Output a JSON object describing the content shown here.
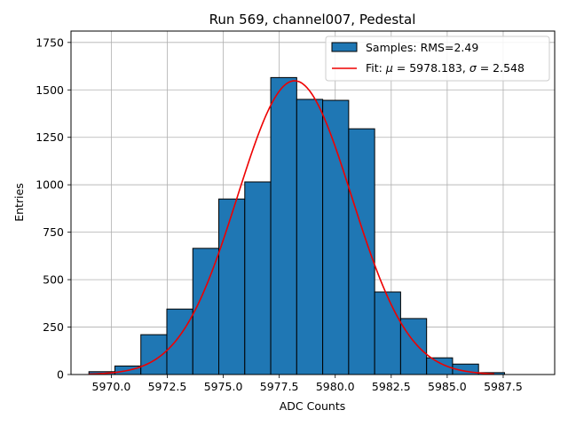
{
  "chart_data": {
    "type": "bar",
    "title": "Run 569, channel007, Pedestal",
    "xlabel": "ADC Counts",
    "ylabel": "Entries",
    "xlim": [
      5968.2,
      5989.8
    ],
    "ylim": [
      0,
      1810
    ],
    "xticks": [
      5970.0,
      5972.5,
      5975.0,
      5977.5,
      5980.0,
      5982.5,
      5985.0,
      5987.5
    ],
    "xtick_labels": [
      "5970.0",
      "5972.5",
      "5975.0",
      "5977.5",
      "5980.0",
      "5982.5",
      "5985.0",
      "5987.5"
    ],
    "yticks": [
      0,
      250,
      500,
      750,
      1000,
      1250,
      1500,
      1750
    ],
    "ytick_labels": [
      "0",
      "250",
      "500",
      "750",
      "1000",
      "1250",
      "1500",
      "1750"
    ],
    "grid": true,
    "legend_position": "top-right",
    "histogram": {
      "name": "Samples: RMS=2.49",
      "color": "#1f77b4",
      "edge_color": "#000000",
      "bin_edges": [
        5969.0,
        5970.16,
        5971.32,
        5972.48,
        5973.64,
        5974.8,
        5975.96,
        5977.12,
        5978.28,
        5979.44,
        5980.6,
        5981.76,
        5982.92,
        5984.08,
        5985.24,
        5986.4,
        5987.56
      ],
      "counts": [
        15,
        45,
        210,
        345,
        665,
        925,
        1015,
        1565,
        1450,
        1445,
        1295,
        435,
        295,
        88,
        55,
        10
      ]
    },
    "fit": {
      "name": "Fit: μ = 5978.183, σ = 2.548",
      "label_prefix": "Fit: ",
      "mu_symbol": "μ",
      "mu_text": " = 5978.183, ",
      "sigma_symbol": "σ",
      "sigma_text": " = 2.548",
      "color": "#ee0000",
      "mu": 5978.183,
      "sigma": 2.548,
      "amplitude": 1548,
      "x_range": [
        5969.0,
        5987.1
      ]
    }
  }
}
